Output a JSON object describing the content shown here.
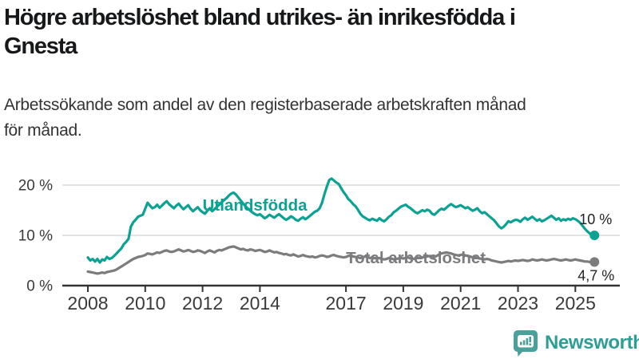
{
  "header": {
    "title_line1": "Högre arbetslöshet bland utrikes- än inrikesfödda i",
    "title_line2": "Gnesta",
    "subtitle_line1": "Arbetssökande som andel av den registerbaserade arbetskraften månad",
    "subtitle_line2": "för månad."
  },
  "chart_data": {
    "type": "line",
    "title": "Högre arbetslöshet bland utrikes- än inrikesfödda i Gnesta",
    "subtitle": "Arbetssökande som andel av den registerbaserade arbetskraften månad för månad.",
    "x_unit": "month",
    "x_start": "2008-01",
    "x_end": "2025-09",
    "ylim": [
      0,
      22
    ],
    "grid": "horizontal-only",
    "yticks": [
      {
        "value": 0,
        "label": "0 %"
      },
      {
        "value": 10,
        "label": "10 %"
      },
      {
        "value": 20,
        "label": "20 %"
      }
    ],
    "xticks": [
      {
        "value": 2008,
        "label": "2008"
      },
      {
        "value": 2010,
        "label": "2010"
      },
      {
        "value": 2012,
        "label": "2012"
      },
      {
        "value": 2014,
        "label": "2014"
      },
      {
        "value": 2017,
        "label": "2017"
      },
      {
        "value": 2019,
        "label": "2019"
      },
      {
        "value": 2021,
        "label": "2021"
      },
      {
        "value": 2023,
        "label": "2023"
      },
      {
        "value": 2025,
        "label": "2025"
      }
    ],
    "series": [
      {
        "name": "Utlandsfödda",
        "color": "#0ba293",
        "end_label": "10 %",
        "label_anchor": {
          "year": 2012.0,
          "pct": 14.9
        },
        "values": [
          5.6,
          5.0,
          5.3,
          4.8,
          5.3,
          4.6,
          5.2,
          5.0,
          5.7,
          5.3,
          5.5,
          5.9,
          6.4,
          6.9,
          7.4,
          8.2,
          8.7,
          9.3,
          11.7,
          12.6,
          13.1,
          13.7,
          13.9,
          14.1,
          15.3,
          16.5,
          15.9,
          15.4,
          15.6,
          16.1,
          15.5,
          15.9,
          16.4,
          16.8,
          16.2,
          15.8,
          15.4,
          15.9,
          16.3,
          15.7,
          15.2,
          15.6,
          16.0,
          15.3,
          14.8,
          15.2,
          15.6,
          15.0,
          14.6,
          14.3,
          14.9,
          15.4,
          14.8,
          15.2,
          15.7,
          16.1,
          16.6,
          17.0,
          17.4,
          17.9,
          18.3,
          18.5,
          18.1,
          17.5,
          16.9,
          16.3,
          15.8,
          15.3,
          14.9,
          14.5,
          14.2,
          14.0,
          14.2,
          13.8,
          13.4,
          13.7,
          14.1,
          13.8,
          13.5,
          13.9,
          14.2,
          13.8,
          13.4,
          13.1,
          13.4,
          13.8,
          13.5,
          13.1,
          12.9,
          13.3,
          13.6,
          13.2,
          13.5,
          13.9,
          14.3,
          14.7,
          14.9,
          15.4,
          16.5,
          18.2,
          19.7,
          21.0,
          21.3,
          20.9,
          20.5,
          20.2,
          19.4,
          18.6,
          18.0,
          17.2,
          16.8,
          16.2,
          15.8,
          15.1,
          14.3,
          13.8,
          13.5,
          13.2,
          13.0,
          13.3,
          13.1,
          12.9,
          13.4,
          13.0,
          12.8,
          13.2,
          13.7,
          14.0,
          14.6,
          14.9,
          15.3,
          15.7,
          15.9,
          16.1,
          15.7,
          15.4,
          15.0,
          14.6,
          14.4,
          14.7,
          15.0,
          14.8,
          15.1,
          14.9,
          14.3,
          14.1,
          14.5,
          15.0,
          15.3,
          15.1,
          15.5,
          15.9,
          16.2,
          15.9,
          15.6,
          15.8,
          16.0,
          15.7,
          15.4,
          15.6,
          15.2,
          14.9,
          15.1,
          15.4,
          14.8,
          14.4,
          14.6,
          14.2,
          13.8,
          13.4,
          13.0,
          12.4,
          11.8,
          11.4,
          11.7,
          12.2,
          12.8,
          12.6,
          12.9,
          13.1,
          13.0,
          12.7,
          13.2,
          13.5,
          13.1,
          13.4,
          13.7,
          13.3,
          12.9,
          13.2,
          12.8,
          13.0,
          13.3,
          13.6,
          13.9,
          13.5,
          13.1,
          13.4,
          12.9,
          13.2,
          13.0,
          13.3,
          13.1,
          13.4,
          13.2,
          12.9,
          12.5,
          11.9,
          11.3,
          10.8,
          10.4,
          10.1,
          10.0
        ]
      },
      {
        "name": "Total arbetslöshet",
        "color": "#7c7c7e",
        "end_label": "4,7 %",
        "label_anchor": {
          "year": 2017.0,
          "pct": 4.45
        },
        "values": [
          2.8,
          2.7,
          2.6,
          2.5,
          2.4,
          2.5,
          2.6,
          2.5,
          2.7,
          2.8,
          2.9,
          3.0,
          3.2,
          3.5,
          3.8,
          4.1,
          4.4,
          4.7,
          5.0,
          5.3,
          5.5,
          5.7,
          5.8,
          5.9,
          6.1,
          6.4,
          6.3,
          6.2,
          6.4,
          6.6,
          6.5,
          6.7,
          6.9,
          7.0,
          6.8,
          6.7,
          6.8,
          7.0,
          7.2,
          7.0,
          6.8,
          6.9,
          7.1,
          6.9,
          6.7,
          6.8,
          7.0,
          6.9,
          6.7,
          6.5,
          6.8,
          7.0,
          6.8,
          6.6,
          6.9,
          7.1,
          7.0,
          7.2,
          7.4,
          7.6,
          7.7,
          7.8,
          7.6,
          7.4,
          7.2,
          7.3,
          7.1,
          7.0,
          7.2,
          7.1,
          6.9,
          7.0,
          7.1,
          6.9,
          6.7,
          6.8,
          7.0,
          6.8,
          6.6,
          6.7,
          6.5,
          6.4,
          6.2,
          6.3,
          6.1,
          6.0,
          6.2,
          6.0,
          5.8,
          5.9,
          6.1,
          5.9,
          5.8,
          5.7,
          5.8,
          5.6,
          5.7,
          5.9,
          6.0,
          5.9,
          5.7,
          5.8,
          6.0,
          6.1,
          5.9,
          5.8,
          5.7,
          5.6,
          5.7,
          5.9,
          6.0,
          5.8,
          5.7,
          5.6,
          5.5,
          5.6,
          5.8,
          5.7,
          5.5,
          5.6,
          5.5,
          5.4,
          5.5,
          5.3,
          5.2,
          5.3,
          5.5,
          5.4,
          5.2,
          5.3,
          5.4,
          5.5,
          5.4,
          5.5,
          5.6,
          5.4,
          5.3,
          5.4,
          5.6,
          5.5,
          5.6,
          5.7,
          5.8,
          5.9,
          5.8,
          5.7,
          5.9,
          6.2,
          6.4,
          6.5,
          6.6,
          6.5,
          6.4,
          6.2,
          6.1,
          6.0,
          6.1,
          6.2,
          6.0,
          5.9,
          5.8,
          5.6,
          5.7,
          5.5,
          5.4,
          5.3,
          5.2,
          5.3,
          5.2,
          5.0,
          4.9,
          4.8,
          4.7,
          4.6,
          4.7,
          4.8,
          4.9,
          4.8,
          4.9,
          5.0,
          4.9,
          5.0,
          5.1,
          5.0,
          4.9,
          5.0,
          5.2,
          5.1,
          5.0,
          5.1,
          5.2,
          5.1,
          5.0,
          5.1,
          5.2,
          5.3,
          5.2,
          5.1,
          5.0,
          5.1,
          5.2,
          5.1,
          5.0,
          5.1,
          5.2,
          5.1,
          5.0,
          4.9,
          4.8,
          4.8,
          4.7,
          4.7,
          4.7
        ]
      }
    ],
    "colors": {
      "grid": "#d8d8d8",
      "axis": "#333333",
      "tick_label": "#3a3a3a",
      "end_label": "#222222"
    }
  },
  "footer": {
    "brand": "Newsworthy",
    "brand_color": "#2d9e95",
    "logo_color": "#4aa09a"
  }
}
